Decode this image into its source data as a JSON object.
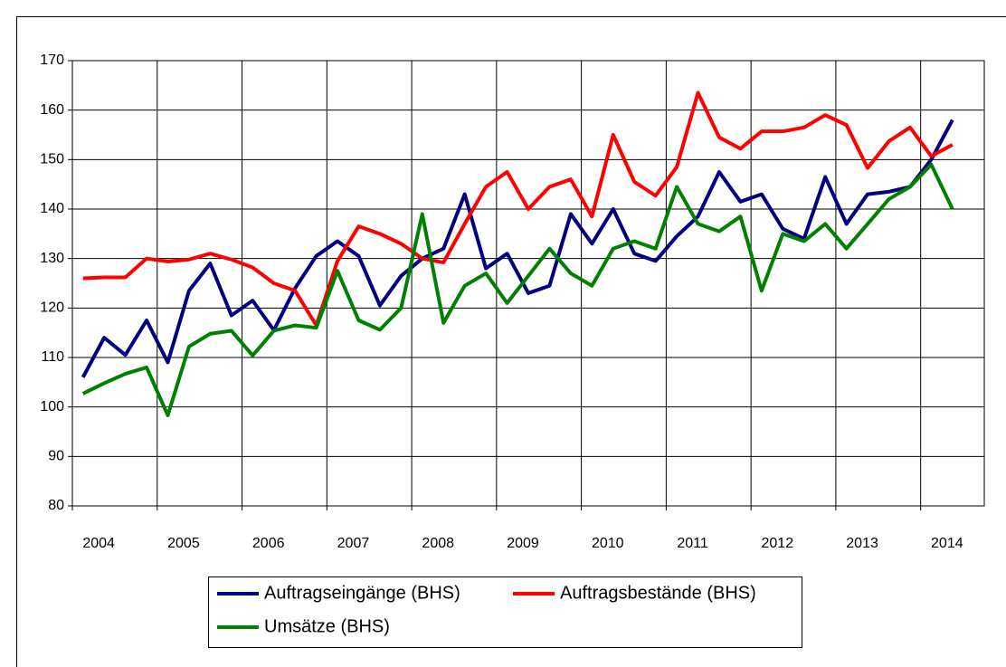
{
  "chart_data": {
    "type": "line",
    "categories": [
      null,
      "2004",
      null,
      null,
      null,
      "2005",
      null,
      null,
      null,
      "2006",
      null,
      null,
      null,
      "2007",
      null,
      null,
      null,
      "2008",
      null,
      null,
      null,
      "2009",
      null,
      null,
      null,
      "2010",
      null,
      null,
      null,
      "2011",
      null,
      null,
      null,
      "2012",
      null,
      null,
      null,
      "2013",
      null,
      null,
      null,
      "2014",
      null
    ],
    "ylim": [
      80,
      170
    ],
    "yticks": [
      80,
      90,
      100,
      110,
      120,
      130,
      140,
      150,
      160,
      170
    ],
    "grid": true,
    "series": [
      {
        "name": "Auftragseingänge (BHS)",
        "color": "#000080",
        "values": [
          106,
          114,
          110.5,
          117.5,
          109,
          123.5,
          129,
          118.5,
          121.5,
          115.5,
          124,
          130.5,
          133.5,
          130.5,
          120.5,
          126.5,
          130,
          132,
          143,
          128,
          131,
          123,
          124.5,
          139,
          133,
          140,
          131,
          129.5,
          134.5,
          138.5,
          147.5,
          141.5,
          143,
          136,
          134,
          146.5,
          137,
          143,
          143.5,
          144.5,
          150,
          158,
          null
        ]
      },
      {
        "name": "Auftragsbestände (BHS)",
        "color": "#ff0000",
        "values": [
          126,
          126.2,
          126.2,
          130,
          129.4,
          129.8,
          131,
          129.8,
          128.2,
          125,
          123.5,
          116.5,
          129.5,
          136.5,
          135,
          133,
          130,
          129.2,
          137,
          144.5,
          147.5,
          140,
          144.5,
          146,
          138.5,
          155,
          145.5,
          142.7,
          148.5,
          163.5,
          154.5,
          152.2,
          155.7,
          155.7,
          156.5,
          159,
          157,
          148.3,
          153.7,
          156.5,
          150.7,
          153,
          null
        ]
      },
      {
        "name": "Umsätze (BHS)",
        "color": "#008000",
        "values": [
          102.7,
          104.8,
          106.7,
          108,
          98.3,
          112.2,
          114.8,
          115.4,
          110.4,
          115.4,
          116.5,
          116,
          127.5,
          117.5,
          115.6,
          120,
          139,
          117,
          124.5,
          127,
          121,
          126.5,
          132,
          127,
          124.5,
          132,
          133.5,
          132,
          144.5,
          137,
          135.5,
          138.5,
          123.5,
          135,
          133.5,
          137,
          132,
          137,
          142,
          144.5,
          149,
          140,
          null
        ]
      }
    ]
  }
}
